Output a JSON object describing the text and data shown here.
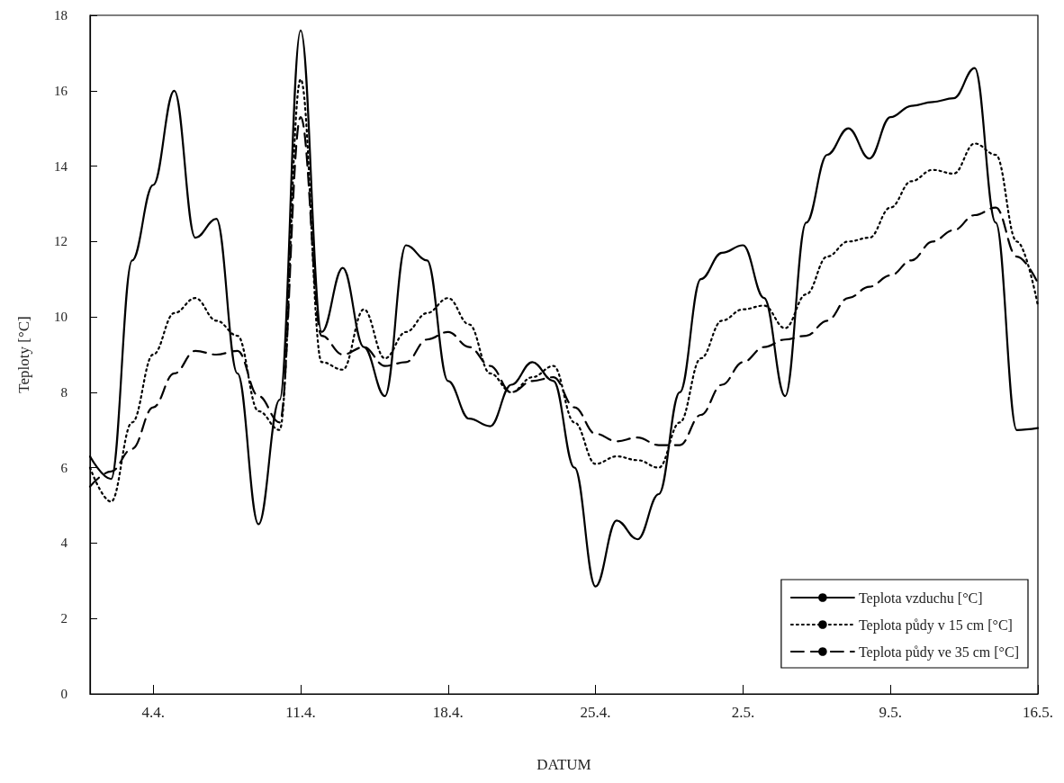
{
  "chart_data": {
    "type": "line",
    "xlabel": "DATUM",
    "ylabel": "Teploty [°C]",
    "categories": [
      null,
      null,
      null,
      "4.4.",
      null,
      null,
      null,
      null,
      null,
      null,
      "11.4.",
      null,
      null,
      null,
      null,
      null,
      null,
      "18.4.",
      null,
      null,
      null,
      null,
      null,
      null,
      "25.4.",
      null,
      null,
      null,
      null,
      null,
      null,
      "2.5.",
      null,
      null,
      null,
      null,
      null,
      null,
      "9.5.",
      null,
      null,
      null,
      null,
      null,
      null,
      "16.5."
    ],
    "ylim": [
      0,
      18
    ],
    "yticks": [
      0,
      2,
      4,
      6,
      8,
      10,
      12,
      14,
      16,
      18
    ],
    "legend": "bottom right",
    "marker": "none",
    "series": [
      {
        "name": "Teplota vzduchu [°C]",
        "color": "#000000",
        "line_style": "solid",
        "values": [
          6.3,
          5.7,
          11.5,
          13.5,
          16.0,
          12.1,
          12.6,
          8.5,
          4.5,
          7.8,
          17.6,
          9.6,
          11.3,
          9.2,
          7.9,
          11.9,
          11.5,
          8.3,
          7.3,
          7.1,
          8.2,
          8.8,
          8.3,
          6.0,
          2.85,
          4.6,
          4.1,
          5.3,
          8.0,
          11.0,
          11.7,
          11.9,
          10.5,
          7.9,
          12.5,
          14.3,
          15.0,
          14.2,
          15.3,
          15.6,
          15.7,
          15.8,
          16.6,
          12.5,
          7.0,
          7.05
        ]
      },
      {
        "name": "Teplota půdy v 15 cm [°C]",
        "color": "#000000",
        "line_style": "dotted",
        "values": [
          6.0,
          5.1,
          7.2,
          9.0,
          10.1,
          10.5,
          9.9,
          9.5,
          7.5,
          7.0,
          16.3,
          8.8,
          8.6,
          10.2,
          8.9,
          9.6,
          10.1,
          10.5,
          9.8,
          8.5,
          8.0,
          8.4,
          8.7,
          7.2,
          6.1,
          6.3,
          6.2,
          6.0,
          7.2,
          8.9,
          9.9,
          10.2,
          10.3,
          9.7,
          10.6,
          11.6,
          12.0,
          12.1,
          12.9,
          13.6,
          13.9,
          13.8,
          14.6,
          14.3,
          12.0,
          10.3
        ]
      },
      {
        "name": "Teplota půdy ve 35 cm [°C]",
        "color": "#000000",
        "line_style": "dashed",
        "values": [
          5.5,
          5.9,
          6.5,
          7.6,
          8.5,
          9.1,
          9.0,
          9.1,
          7.9,
          7.2,
          15.3,
          9.5,
          9.0,
          9.2,
          8.7,
          8.8,
          9.4,
          9.6,
          9.2,
          8.7,
          8.0,
          8.3,
          8.4,
          7.6,
          6.9,
          6.7,
          6.8,
          6.6,
          6.6,
          7.4,
          8.2,
          8.8,
          9.2,
          9.4,
          9.5,
          9.9,
          10.5,
          10.8,
          11.1,
          11.5,
          12.0,
          12.3,
          12.7,
          12.9,
          11.6,
          10.9
        ]
      }
    ]
  }
}
